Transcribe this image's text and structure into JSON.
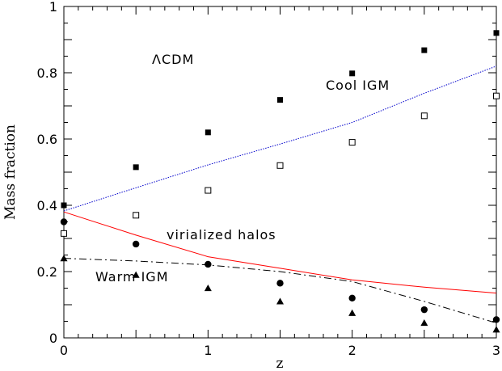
{
  "chart_data": {
    "type": "line",
    "xlabel": "z",
    "ylabel": "Mass fraction",
    "xlim": [
      0,
      3
    ],
    "ylim": [
      0,
      1
    ],
    "xticks": [
      0,
      1,
      2,
      3
    ],
    "xtick_labels": [
      "0",
      "1",
      "2",
      "3"
    ],
    "yticks": [
      0,
      0.2,
      0.4,
      0.6,
      0.8,
      1
    ],
    "ytick_labels": [
      "0",
      "0.2",
      "0.4",
      "0.6",
      "0.8",
      "1"
    ],
    "grid": false,
    "annotations": [
      "ΛCDM",
      "Cool IGM",
      "virialized halos",
      "Warm IGM"
    ],
    "series": [
      {
        "style": "dotted-line",
        "color": "#0000cc",
        "x": [
          0,
          0.5,
          1,
          1.5,
          2,
          2.5,
          3
        ],
        "y": [
          0.383,
          0.453,
          0.522,
          0.585,
          0.65,
          0.738,
          0.82
        ]
      },
      {
        "style": "solid-line",
        "color": "#ff0000",
        "x": [
          0,
          0.5,
          1,
          1.5,
          2,
          2.5,
          3
        ],
        "y": [
          0.38,
          0.31,
          0.245,
          0.21,
          0.175,
          0.153,
          0.135
        ]
      },
      {
        "style": "dashed-line",
        "color": "#000000",
        "x": [
          0,
          0.5,
          1,
          1.5,
          2,
          2.5,
          3
        ],
        "y": [
          0.24,
          0.232,
          0.22,
          0.2,
          0.17,
          0.11,
          0.045
        ]
      },
      {
        "style": "filled-square",
        "color": "#000000",
        "x": [
          0,
          0.5,
          1,
          1.5,
          2,
          2.5,
          3
        ],
        "y": [
          0.4,
          0.515,
          0.62,
          0.718,
          0.798,
          0.868,
          0.92
        ]
      },
      {
        "style": "open-square",
        "color": "#000000",
        "x": [
          0,
          0.5,
          1,
          1.5,
          2,
          2.5,
          3
        ],
        "y": [
          0.315,
          0.37,
          0.445,
          0.52,
          0.59,
          0.67,
          0.73
        ]
      },
      {
        "style": "filled-circle",
        "color": "#000000",
        "x": [
          0,
          0.5,
          1,
          1.5,
          2,
          2.5,
          3
        ],
        "y": [
          0.35,
          0.283,
          0.222,
          0.165,
          0.12,
          0.085,
          0.055
        ]
      },
      {
        "style": "filled-triangle",
        "color": "#000000",
        "x": [
          0,
          0.5,
          1,
          1.5,
          2,
          2.5,
          3
        ],
        "y": [
          0.24,
          0.19,
          0.15,
          0.11,
          0.075,
          0.045,
          0.025
        ]
      }
    ]
  }
}
